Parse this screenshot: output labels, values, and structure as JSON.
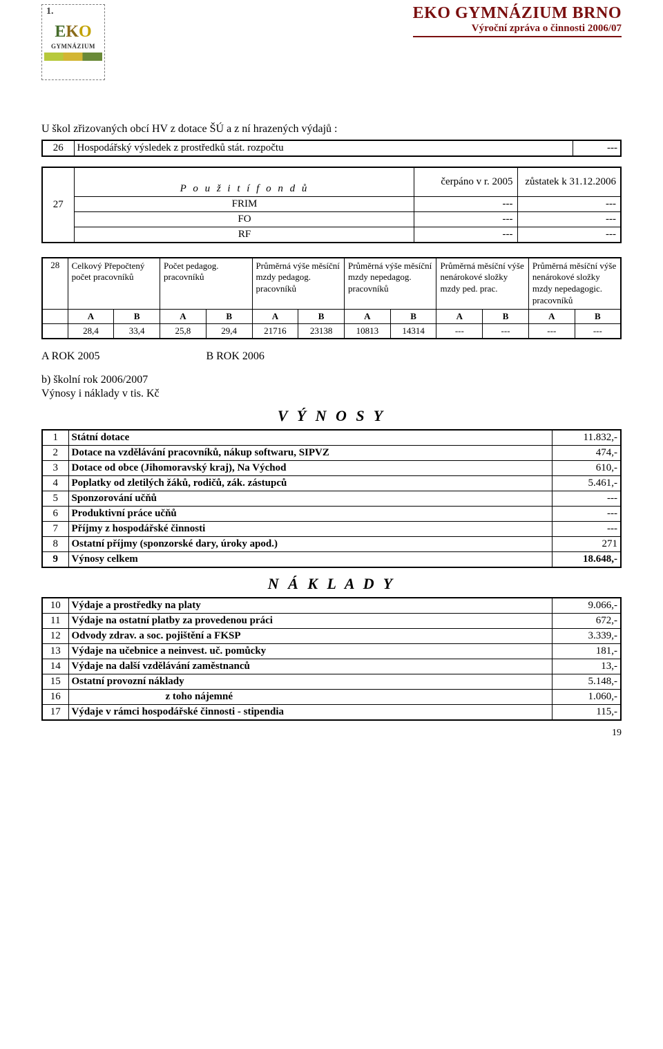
{
  "header": {
    "title": "EKO GYMNÁZIUM BRNO",
    "subtitle": "Výroční zpráva o činnosti 2006/07",
    "logo_label": "1.",
    "logo_text": "EKO",
    "logo_sub": "GYMNÁZIUM"
  },
  "intro": {
    "para": "U škol zřizovaných obcí HV z dotace ŠÚ a z ní hrazených výdajů :",
    "row_num": "26",
    "row_label": "Hospodářský výsledek z prostředků stát. rozpočtu",
    "row_val": "---"
  },
  "fondy": {
    "head_label": "P o u ž i t í   f o n d ů",
    "col1": "čerpáno v r. 2005",
    "col2": "zůstatek k 31.12.2006",
    "num": "27",
    "rows": [
      {
        "lbl": "FRIM",
        "a": "---",
        "b": "---"
      },
      {
        "lbl": "FO",
        "a": "---",
        "b": "---"
      },
      {
        "lbl": "RF",
        "a": "---",
        "b": "---"
      }
    ]
  },
  "prum": {
    "num": "28",
    "cols": [
      "Celkový Přepočtený počet pracovníků",
      "Počet pedagog. pracovníků",
      "Průměrná výše měsíční mzdy pedagog. pracovníků",
      "Průměrná výše měsíční mzdy nepedagog. pracovníků",
      "Průměrná měsíční výše nenárokové složky mzdy ped. prac.",
      "Průměrná měsíční výše nenárokové složky mzdy nepedagogic. pracovníků"
    ],
    "ab": [
      "A",
      "B",
      "A",
      "B",
      "A",
      "B",
      "A",
      "B",
      "A",
      "B",
      "A",
      "B"
    ],
    "vals": [
      "28,4",
      "33,4",
      "25,8",
      "29,4",
      "21716",
      "23138",
      "10813",
      "14314",
      "---",
      "---",
      "---",
      "---"
    ]
  },
  "rok": {
    "a": "A     ROK   2005",
    "b": "B      ROK   2006"
  },
  "section_b": {
    "line1": "b)         školní rok 2006/2007",
    "line2": "Výnosy i náklady v tis. Kč"
  },
  "vynosy": {
    "title": "V Ý N O S Y",
    "rows": [
      {
        "n": "1",
        "lbl": "Státní dotace",
        "v": "11.832,-"
      },
      {
        "n": "2",
        "lbl": "Dotace na vzdělávání pracovníků, nákup softwaru, SIPVZ",
        "v": "474,-"
      },
      {
        "n": "3",
        "lbl": "Dotace od obce (Jihomoravský kraj), Na Východ",
        "v": "610,-"
      },
      {
        "n": "4",
        "lbl": "Poplatky od zletilých žáků, rodičů, zák. zástupců",
        "v": "5.461,-"
      },
      {
        "n": "5",
        "lbl": "Sponzorování učňů",
        "v": "---"
      },
      {
        "n": "6",
        "lbl": "Produktivní práce učňů",
        "v": "---"
      },
      {
        "n": "7",
        "lbl": "Příjmy z hospodářské činnosti",
        "v": "---"
      },
      {
        "n": "8",
        "lbl": "Ostatní příjmy (sponzorské dary, úroky apod.)",
        "v": "271"
      },
      {
        "n": "9",
        "lbl": "Výnosy celkem",
        "v": "18.648,-"
      }
    ]
  },
  "naklady": {
    "title": "N Á K L A D Y",
    "rows": [
      {
        "n": "10",
        "lbl": "Výdaje a prostředky na platy",
        "v": "9.066,-"
      },
      {
        "n": "11",
        "lbl": "Výdaje na ostatní platby za provedenou práci",
        "v": "672,-"
      },
      {
        "n": "12",
        "lbl": "Odvody zdrav. a soc. pojištění a FKSP",
        "v": "3.339,-"
      },
      {
        "n": "13",
        "lbl": "Výdaje na učebnice a neinvest. uč. pomůcky",
        "v": "181,-"
      },
      {
        "n": "14",
        "lbl": "Výdaje na další vzdělávání zaměstnanců",
        "v": "13,-"
      },
      {
        "n": "15",
        "lbl": "Ostatní provozní náklady",
        "v": "5.148,-"
      },
      {
        "n": "16",
        "lbl": "z toho nájemné",
        "v": "1.060,-",
        "sub": true
      },
      {
        "n": "17",
        "lbl": "Výdaje v rámci hospodářské činnosti - stipendia",
        "v": "115,-"
      }
    ]
  },
  "page_num": "19"
}
